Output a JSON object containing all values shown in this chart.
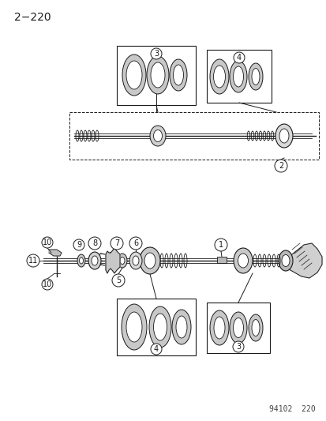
{
  "title": "2−220",
  "footer": "94102  220",
  "bg_color": "#ffffff",
  "lc": "#1a1a1a",
  "title_fontsize": 10,
  "footer_fontsize": 7,
  "fig_w": 4.14,
  "fig_h": 5.33,
  "dpi": 100
}
